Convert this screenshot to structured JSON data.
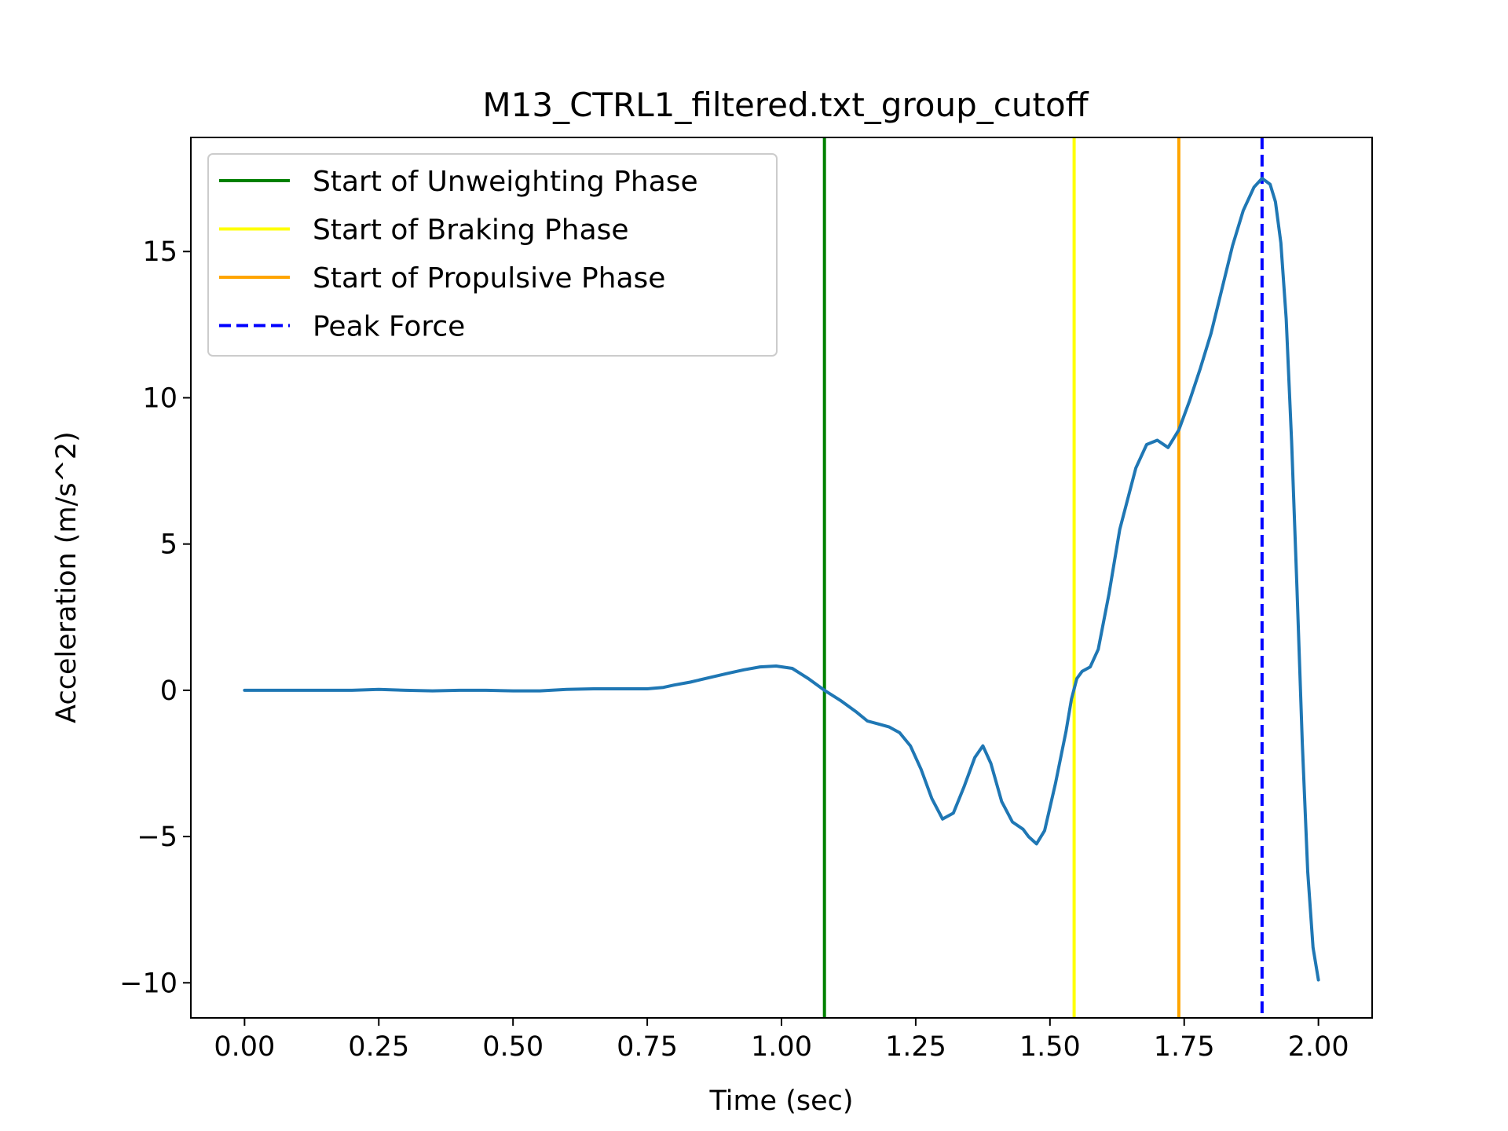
{
  "chart_data": {
    "type": "line",
    "title": "M13_CTRL1_filtered.txt_group_cutoff",
    "xlabel": "Time (sec)",
    "ylabel": "Acceleration (m/s^2)",
    "xlim": [
      -0.1,
      2.1
    ],
    "ylim": [
      -11.2,
      18.9
    ],
    "x_ticks": [
      0.0,
      0.25,
      0.5,
      0.75,
      1.0,
      1.25,
      1.5,
      1.75,
      2.0
    ],
    "x_tick_labels": [
      "0.00",
      "0.25",
      "0.50",
      "0.75",
      "1.00",
      "1.25",
      "1.50",
      "1.75",
      "2.00"
    ],
    "y_ticks": [
      -10,
      -5,
      0,
      5,
      10,
      15
    ],
    "y_tick_labels": [
      "−10",
      "−5",
      "0",
      "5",
      "10",
      "15"
    ],
    "grid": false,
    "legend_position": "top-left",
    "series": [
      {
        "color": "#1f77b4",
        "points": [
          [
            0.0,
            0.0
          ],
          [
            0.05,
            0.0
          ],
          [
            0.1,
            0.0
          ],
          [
            0.15,
            0.0
          ],
          [
            0.2,
            0.0
          ],
          [
            0.25,
            0.03
          ],
          [
            0.3,
            0.0
          ],
          [
            0.35,
            -0.02
          ],
          [
            0.4,
            0.0
          ],
          [
            0.45,
            0.0
          ],
          [
            0.5,
            -0.02
          ],
          [
            0.55,
            -0.02
          ],
          [
            0.6,
            0.03
          ],
          [
            0.65,
            0.05
          ],
          [
            0.7,
            0.05
          ],
          [
            0.75,
            0.05
          ],
          [
            0.78,
            0.1
          ],
          [
            0.8,
            0.18
          ],
          [
            0.83,
            0.28
          ],
          [
            0.87,
            0.45
          ],
          [
            0.9,
            0.58
          ],
          [
            0.93,
            0.7
          ],
          [
            0.96,
            0.8
          ],
          [
            0.99,
            0.83
          ],
          [
            1.02,
            0.75
          ],
          [
            1.05,
            0.4
          ],
          [
            1.08,
            0.0
          ],
          [
            1.11,
            -0.35
          ],
          [
            1.14,
            -0.75
          ],
          [
            1.16,
            -1.05
          ],
          [
            1.18,
            -1.15
          ],
          [
            1.2,
            -1.25
          ],
          [
            1.22,
            -1.45
          ],
          [
            1.24,
            -1.9
          ],
          [
            1.26,
            -2.7
          ],
          [
            1.28,
            -3.7
          ],
          [
            1.3,
            -4.4
          ],
          [
            1.32,
            -4.2
          ],
          [
            1.34,
            -3.3
          ],
          [
            1.36,
            -2.3
          ],
          [
            1.375,
            -1.9
          ],
          [
            1.39,
            -2.5
          ],
          [
            1.41,
            -3.8
          ],
          [
            1.43,
            -4.5
          ],
          [
            1.45,
            -4.75
          ],
          [
            1.46,
            -5.0
          ],
          [
            1.475,
            -5.25
          ],
          [
            1.49,
            -4.8
          ],
          [
            1.51,
            -3.2
          ],
          [
            1.53,
            -1.4
          ],
          [
            1.54,
            -0.3
          ],
          [
            1.55,
            0.4
          ],
          [
            1.56,
            0.65
          ],
          [
            1.575,
            0.8
          ],
          [
            1.59,
            1.4
          ],
          [
            1.61,
            3.3
          ],
          [
            1.63,
            5.5
          ],
          [
            1.66,
            7.6
          ],
          [
            1.68,
            8.4
          ],
          [
            1.7,
            8.55
          ],
          [
            1.72,
            8.3
          ],
          [
            1.74,
            8.9
          ],
          [
            1.76,
            9.9
          ],
          [
            1.78,
            11.0
          ],
          [
            1.8,
            12.2
          ],
          [
            1.82,
            13.7
          ],
          [
            1.84,
            15.2
          ],
          [
            1.86,
            16.4
          ],
          [
            1.88,
            17.2
          ],
          [
            1.895,
            17.5
          ],
          [
            1.91,
            17.3
          ],
          [
            1.92,
            16.7
          ],
          [
            1.93,
            15.3
          ],
          [
            1.94,
            12.7
          ],
          [
            1.95,
            8.5
          ],
          [
            1.96,
            3.5
          ],
          [
            1.97,
            -1.8
          ],
          [
            1.98,
            -6.2
          ],
          [
            1.99,
            -8.8
          ],
          [
            2.0,
            -9.9
          ]
        ]
      }
    ],
    "vlines": [
      {
        "label": "Start of Unweighting Phase",
        "x": 1.08,
        "color": "#008000",
        "style": "solid"
      },
      {
        "label": "Start of Braking Phase",
        "x": 1.545,
        "color": "#ffff00",
        "style": "solid"
      },
      {
        "label": "Start of Propulsive Phase",
        "x": 1.74,
        "color": "#ffa500",
        "style": "solid"
      },
      {
        "label": "Peak Force",
        "x": 1.895,
        "color": "#0000ff",
        "style": "dashed"
      }
    ]
  }
}
